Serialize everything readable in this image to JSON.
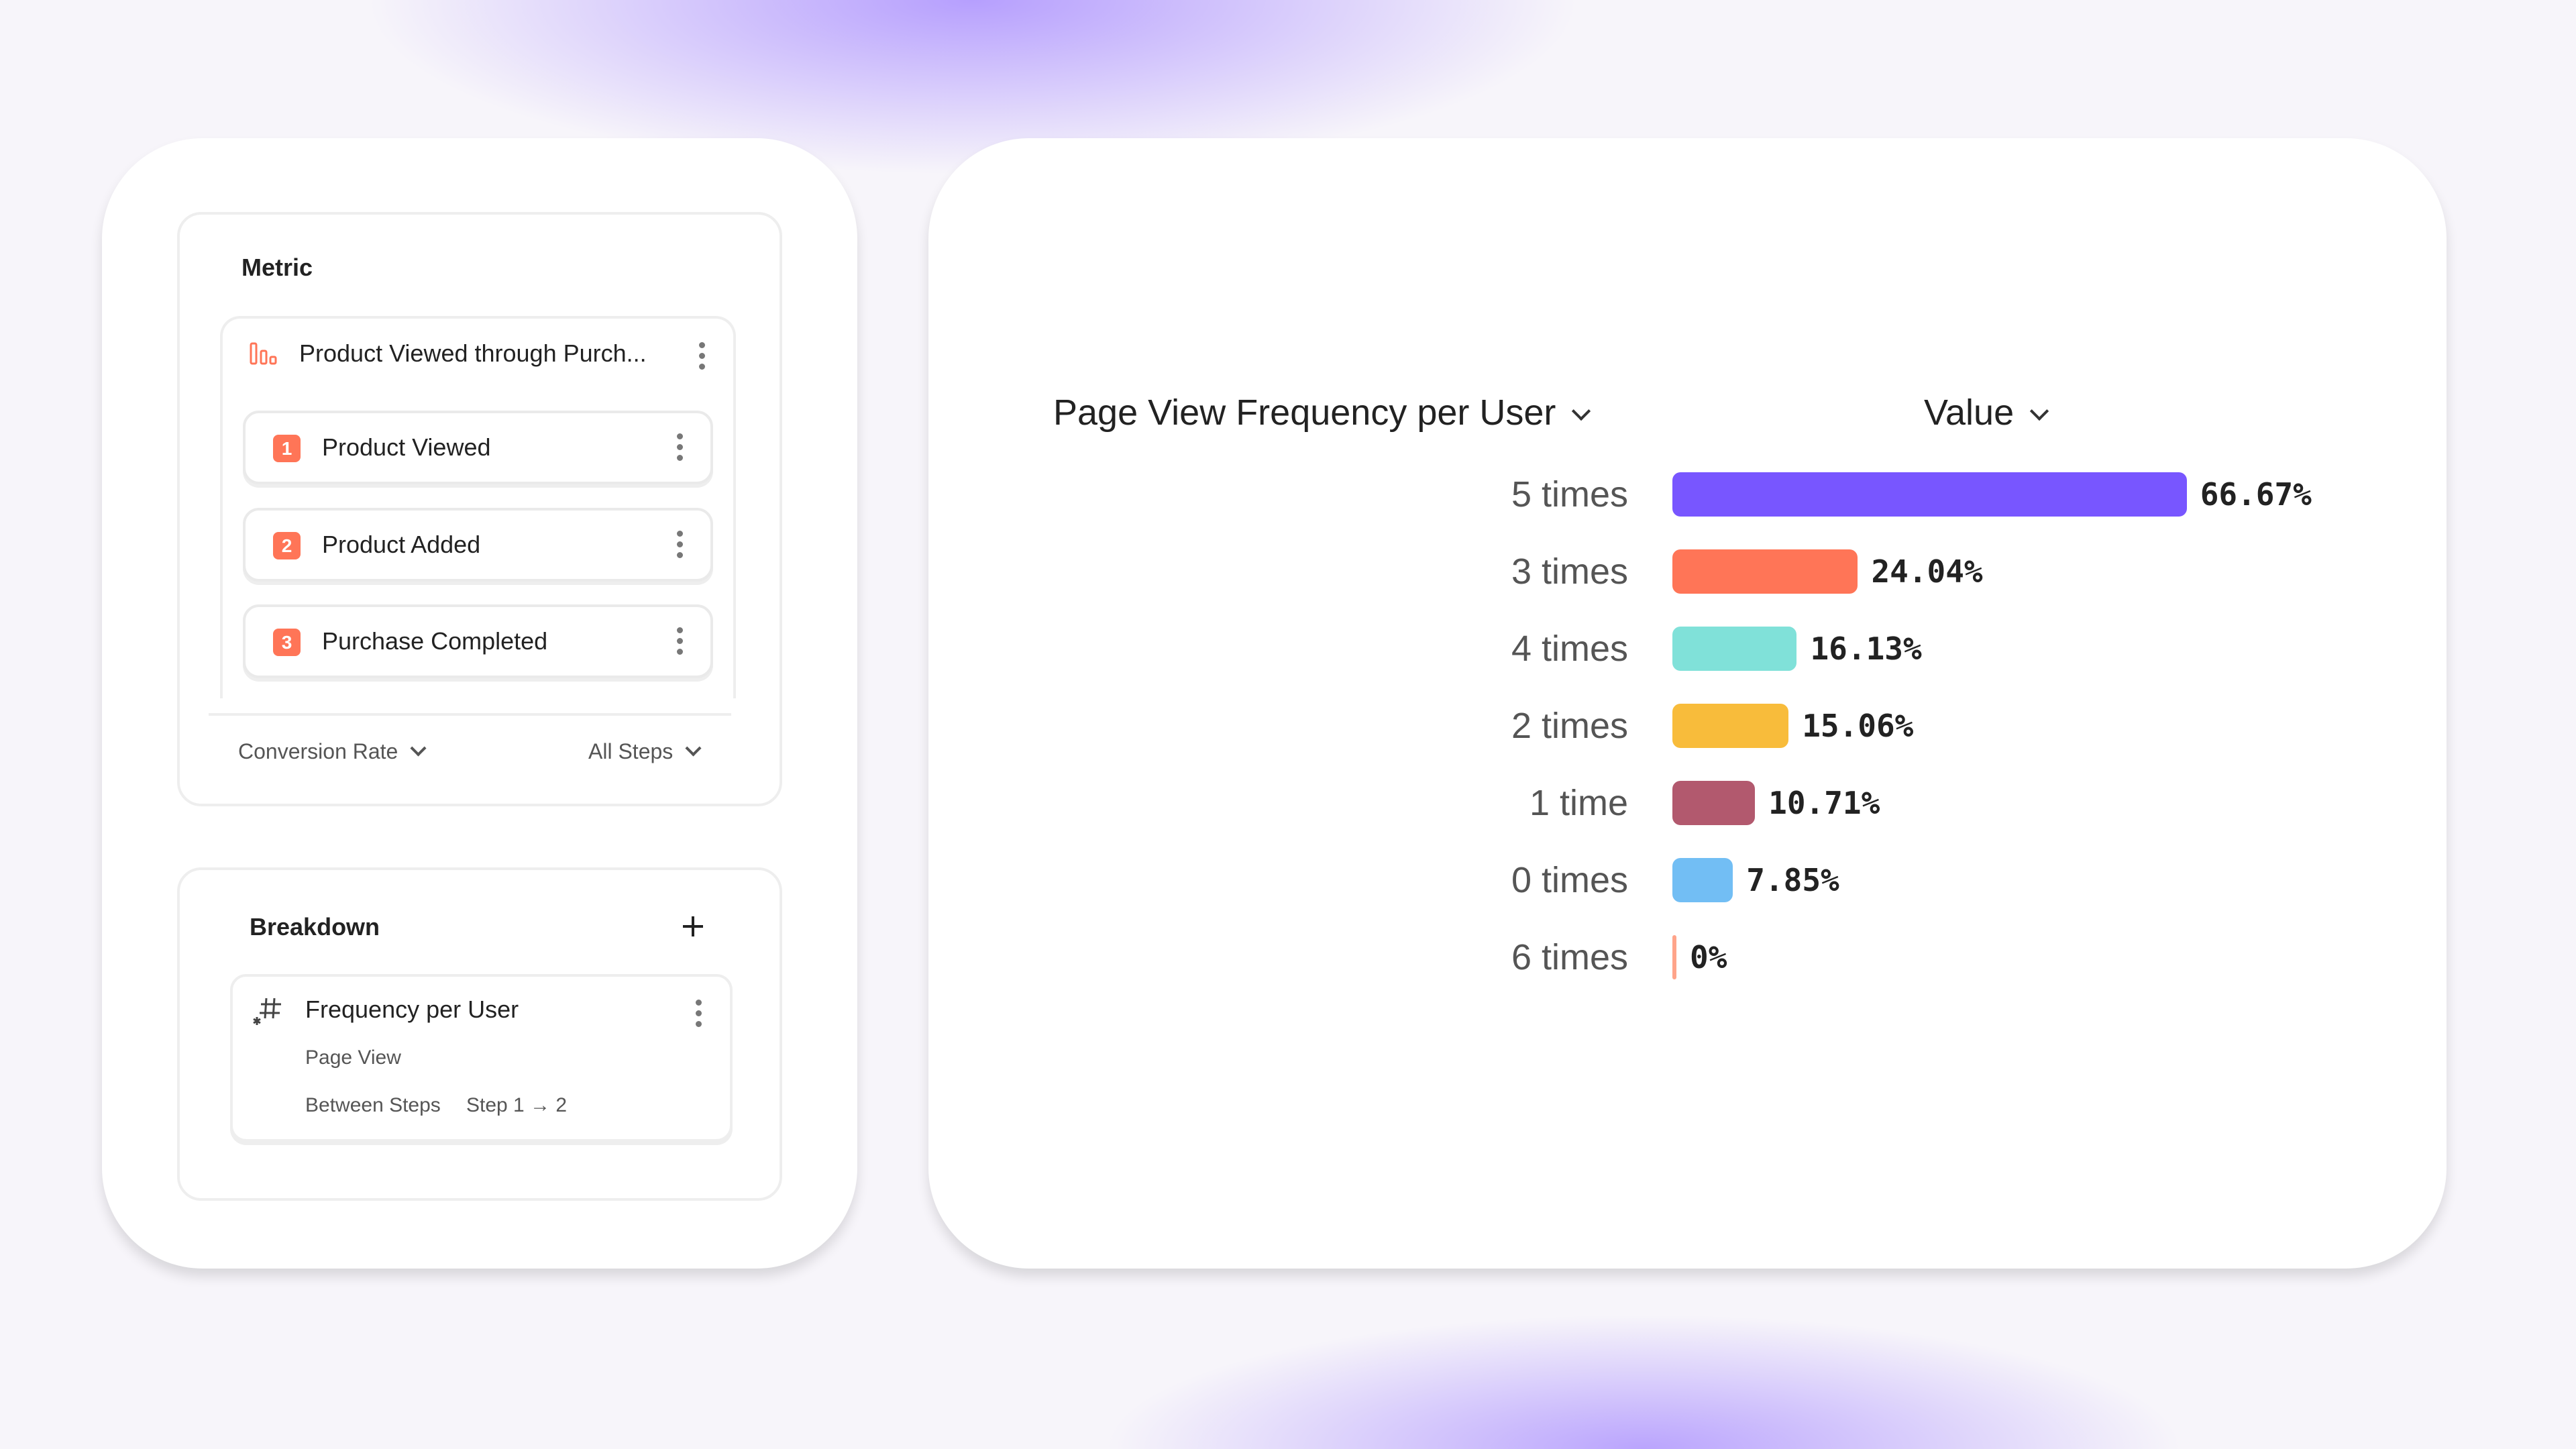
{
  "metric": {
    "heading": "Metric",
    "funnel_name": "Product Viewed through Purch...",
    "steps": [
      {
        "number": "1",
        "label": "Product Viewed"
      },
      {
        "number": "2",
        "label": "Product Added"
      },
      {
        "number": "3",
        "label": "Purchase Completed"
      }
    ],
    "measure_select": "Conversion Rate",
    "steps_select": "All Steps",
    "accent_color": "#FF7557"
  },
  "breakdown": {
    "heading": "Breakdown",
    "item": {
      "title": "Frequency per User",
      "event": "Page View",
      "scope_label": "Between Steps",
      "scope_value": "Step 1 → 2"
    }
  },
  "chart_header": {
    "dimension_select": "Page View Frequency per User",
    "value_select": "Value"
  },
  "chart_data": {
    "type": "bar",
    "orientation": "horizontal",
    "categories": [
      "5 times",
      "3 times",
      "4 times",
      "2 times",
      "1 time",
      "0 times",
      "6 times"
    ],
    "values": [
      66.67,
      24.04,
      16.13,
      15.06,
      10.71,
      7.85,
      0
    ],
    "value_labels": [
      "66.67%",
      "24.04%",
      "16.13%",
      "15.06%",
      "10.71%",
      "7.85%",
      "0%"
    ],
    "colors": [
      "#7856FF",
      "#FF7557",
      "#80E1D9",
      "#F8BC3B",
      "#B2596E",
      "#72BEF4",
      "#FFA48A"
    ],
    "unit": "%",
    "grid": false
  }
}
